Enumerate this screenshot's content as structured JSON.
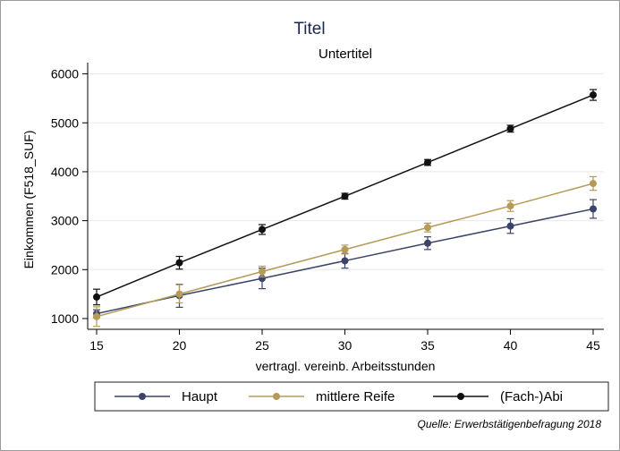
{
  "chart_data": {
    "type": "line",
    "title": "Titel",
    "subtitle": "Untertitel",
    "xlabel": "vertragl. vereinb. Arbeitsstunden",
    "ylabel": "Einkommen (F518_SUF)",
    "x": [
      15,
      20,
      25,
      30,
      35,
      40,
      45
    ],
    "xticks": [
      15,
      20,
      25,
      30,
      35,
      40,
      45
    ],
    "yticks": [
      1000,
      2000,
      3000,
      4000,
      5000,
      6000
    ],
    "xlim": [
      15,
      45
    ],
    "ylim": [
      780,
      6230
    ],
    "grid": true,
    "legend_position": "bottom",
    "series": [
      {
        "name": "Haupt",
        "color": "#3b4468",
        "values": [
          1100,
          1470,
          1820,
          2180,
          2540,
          2890,
          3240
        ],
        "ci_low": [
          1020,
          1230,
          1610,
          2030,
          2410,
          2740,
          3050
        ],
        "ci_high": [
          1180,
          1700,
          2030,
          2330,
          2670,
          3040,
          3430
        ]
      },
      {
        "name": "mittlere Reife",
        "color": "#b59a58",
        "values": [
          1040,
          1500,
          1960,
          2410,
          2860,
          3300,
          3760
        ],
        "ci_low": [
          840,
          1320,
          1850,
          2320,
          2770,
          3190,
          3620
        ],
        "ci_high": [
          1240,
          1690,
          2070,
          2500,
          2950,
          3410,
          3900
        ]
      },
      {
        "name": "(Fach-)Abi",
        "color": "#111111",
        "values": [
          1440,
          2140,
          2820,
          3500,
          4190,
          4880,
          5570
        ],
        "ci_low": [
          1280,
          2010,
          2720,
          3440,
          4130,
          4810,
          5460
        ],
        "ci_high": [
          1600,
          2270,
          2920,
          3560,
          4250,
          4950,
          5680
        ]
      }
    ],
    "note": "Quelle: Erwerbstätigenbefragung 2018"
  }
}
